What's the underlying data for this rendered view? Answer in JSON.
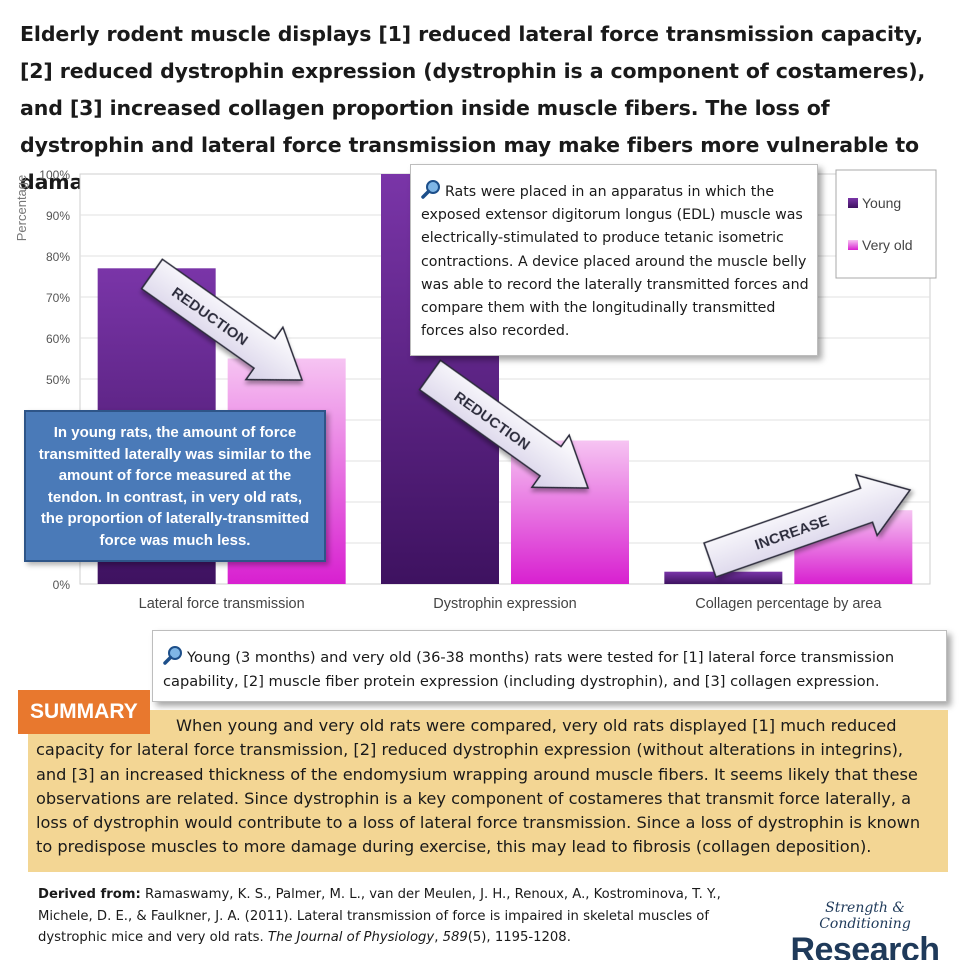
{
  "headline": "Elderly rodent muscle displays [1] reduced lateral force transmission capacity, [2] reduced dystrophin expression (dystrophin is a component of costameres), and [3] increased collagen proportion inside muscle fibers. The loss of dystrophin and lateral force transmission may make fibers more vulnerable to damage.",
  "chart_data": {
    "type": "bar",
    "categories": [
      "Lateral force transmission",
      "Dystrophin expression",
      "Collagen percentage by area"
    ],
    "series": [
      {
        "name": "Young",
        "values": [
          77,
          100,
          3
        ],
        "color": "#6a2a90"
      },
      {
        "name": "Very old",
        "values": [
          55,
          35,
          18
        ],
        "color": "#e040d8"
      }
    ],
    "ylabel": "Percentage",
    "ylim": [
      0,
      100
    ],
    "yticks": [
      "0%",
      "10%",
      "20%",
      "30%",
      "40%",
      "50%",
      "60%",
      "70%",
      "80%",
      "90%",
      "100%"
    ],
    "grid": true,
    "legend": "top-right",
    "annotations": [
      "REDUCTION",
      "REDUCTION",
      "INCREASE"
    ]
  },
  "method_note": "Rats were placed in an apparatus in which the exposed extensor digitorum longus (EDL) muscle was electrically-stimulated to produce tetanic isometric contractions. A device placed around the muscle belly was able to record the laterally transmitted forces and compare them with the longitudinally transmitted forces also recorded.",
  "finding_note": "In young rats, the amount of force transmitted laterally was similar to the amount of force measured at the tendon. In contrast, in very old rats, the proportion of laterally-transmitted force was much less.",
  "design_note": "Young (3 months) and very old (36-38 months) rats were tested for [1] lateral force transmission capability, [2] muscle fiber protein expression (including dystrophin), and [3] collagen expression.",
  "summary": {
    "label": "SUMMARY",
    "text": "When young and very old rats were compared, very old rats displayed [1] much reduced capacity for lateral force transmission, [2] reduced dystrophin expression (without alterations in integrins), and [3] an increased thickness of the endomysium wrapping around muscle fibers. It seems likely that these observations are related. Since dystrophin is a key component of costameres that transmit force laterally, a loss of dystrophin would contribute to a loss of lateral force transmission. Since a loss of dystrophin is known to predispose muscles to more damage during exercise, this may lead to fibrosis (collagen deposition)."
  },
  "source": {
    "label": "Derived from:",
    "authors": "Ramaswamy, K. S., Palmer, M. L., van der Meulen, J. H., Renoux, A., Kostrominova, T. Y., Michele, D. E., & Faulkner, J. A. (2011). Lateral transmission of force is impaired in skeletal muscles of dystrophic mice and very old rats.",
    "journal": "The Journal of Physiology",
    "volume": "589",
    "issue_pages": "(5), 1195-1208."
  },
  "brand": {
    "sub": "Strength & Conditioning",
    "main": "Research"
  }
}
